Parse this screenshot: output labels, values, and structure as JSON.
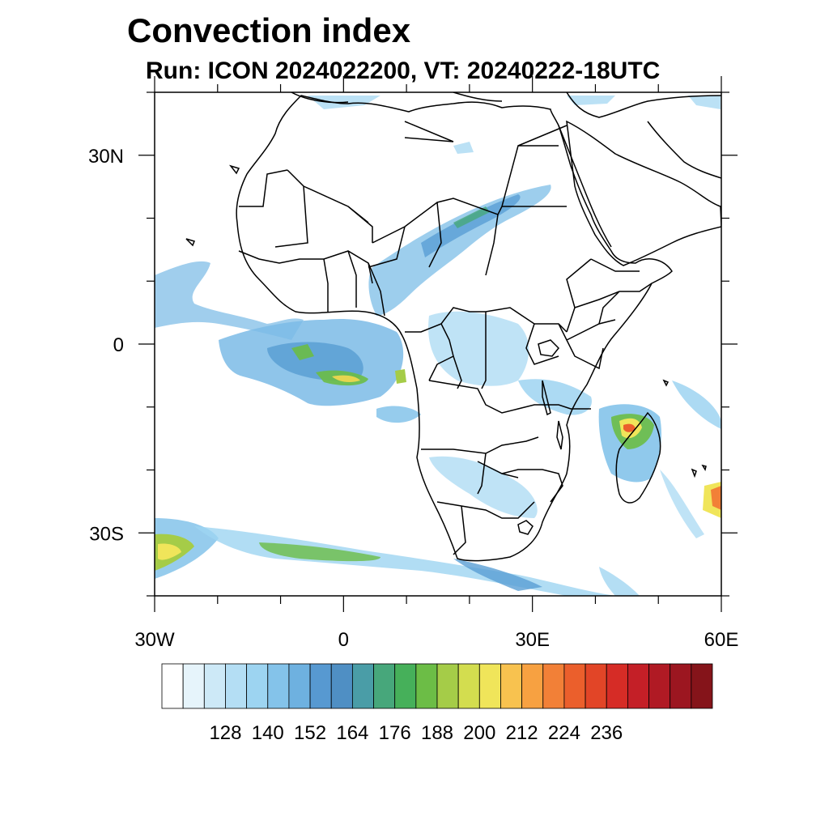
{
  "title": "Convection index",
  "subtitle": "Run: ICON 2024022200,  VT: 20240222-18UTC",
  "map": {
    "lon_range": [
      -30,
      60
    ],
    "lat_range": [
      -40,
      40
    ],
    "lon_ticks": [
      {
        "value": -30,
        "label": "30W"
      },
      {
        "value": 0,
        "label": "0"
      },
      {
        "value": 30,
        "label": "30E"
      },
      {
        "value": 60,
        "label": "60E"
      }
    ],
    "lat_ticks": [
      {
        "value": 30,
        "label": "30N"
      },
      {
        "value": 0,
        "label": "0"
      },
      {
        "value": -30,
        "label": "30S"
      }
    ]
  },
  "colorbar": {
    "colors": [
      "#ffffff",
      "#e6f4fb",
      "#cde9f7",
      "#b4def4",
      "#9dd4f1",
      "#84c3ea",
      "#6eb1e0",
      "#5799d1",
      "#4f8fc4",
      "#4a9da7",
      "#47a77b",
      "#46b05a",
      "#6cbd46",
      "#a5cc48",
      "#d3dd4f",
      "#f0e55a",
      "#f8c24f",
      "#f7a141",
      "#f28037",
      "#eb5f2c",
      "#e24527",
      "#d62c26",
      "#c41f27",
      "#b01a24",
      "#9c1620",
      "#85141a"
    ],
    "labels": [
      "128",
      "140",
      "152",
      "164",
      "176",
      "188",
      "200",
      "212",
      "224",
      "236"
    ],
    "label_boundary_index": [
      2,
      4,
      6,
      8,
      10,
      12,
      14,
      16,
      18,
      20
    ]
  }
}
